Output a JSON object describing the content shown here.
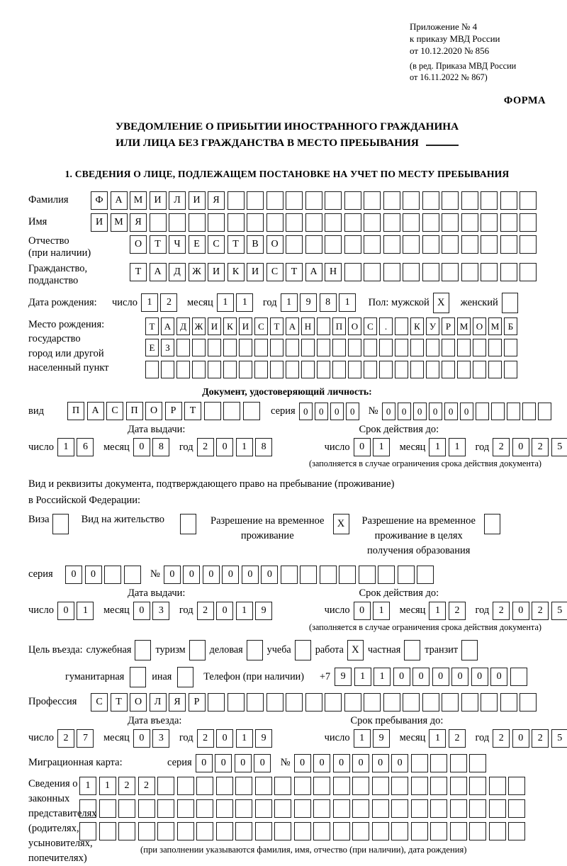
{
  "meta": {
    "appendix_line1": "Приложение № 4",
    "appendix_line2": "к приказу МВД России",
    "appendix_line3": "от 10.12.2020 № 856",
    "edition_line1": "(в ред. Приказа МВД России",
    "edition_line2": "от 16.11.2022 № 867)",
    "forma": "ФОРМА"
  },
  "title": {
    "line1": "УВЕДОМЛЕНИЕ О ПРИБЫТИИ ИНОСТРАННОГО ГРАЖДАНИНА",
    "line2": "ИЛИ ЛИЦА БЕЗ ГРАЖДАНСТВА В МЕСТО ПРЕБЫВАНИЯ"
  },
  "section1_heading": "1. СВЕДЕНИЯ О ЛИЦЕ, ПОДЛЕЖАЩЕМ ПОСТАНОВКЕ НА УЧЕТ ПО МЕСТУ ПРЕБЫВАНИЯ",
  "fields": {
    "surname": {
      "label": "Фамилия",
      "cells": {
        "text": "ФАМИЛИЯ",
        "len": 23
      }
    },
    "firstname": {
      "label": "Имя",
      "cells": {
        "text": "ИМЯ",
        "len": 23
      }
    },
    "patronymic": {
      "label_line1": "Отчество",
      "label_line2": "(при наличии)",
      "cells": {
        "text": "ОТЧЕСТВО",
        "len": 21
      }
    },
    "citizenship": {
      "label_line1": "Гражданство,",
      "label_line2": "подданство",
      "cells": {
        "text": "ТАДЖИКИСТАН",
        "len": 21
      }
    },
    "birth_date": {
      "label": "Дата рождения:",
      "day_label": "число",
      "day": {
        "text": "12",
        "len": 2
      },
      "month_label": "месяц",
      "month": {
        "text": "11",
        "len": 2
      },
      "year_label": "год",
      "year": {
        "text": "1981",
        "len": 4
      },
      "gender_label": "Пол: мужской",
      "male_mark": "X",
      "female_label": "женский",
      "female_mark": ""
    },
    "birth_place": {
      "label_line1": "Место рождения:",
      "label_line2": "государство",
      "label_line3": "город или другой",
      "label_line4": "населенный пункт",
      "row1": {
        "text": "ТАДЖИКИСТАН ПОС. КУРМОМБ",
        "len": 24
      },
      "row2": {
        "text": "ЕЗ",
        "len": 24
      },
      "row3": {
        "text": "",
        "len": 24
      }
    },
    "identity_doc": {
      "heading": "Документ, удостоверяющий личность:",
      "type_label": "вид",
      "type_cells": {
        "text": "ПАСПОРТ",
        "len": 10
      },
      "series_label": "серия",
      "series_cells": {
        "text": "0000",
        "len": 4
      },
      "number_label": "№",
      "number_cells": {
        "text": "000000",
        "len": 11
      }
    },
    "identity_doc_dates": {
      "issue_heading": "Дата выдачи:",
      "validity_heading": "Срок действия до:",
      "day_label": "число",
      "month_label": "месяц",
      "year_label": "год",
      "issue_day": {
        "text": "16",
        "len": 2
      },
      "issue_month": {
        "text": "08",
        "len": 2
      },
      "issue_year": {
        "text": "2018",
        "len": 4
      },
      "valid_day": {
        "text": "01",
        "len": 2
      },
      "valid_month": {
        "text": "11",
        "len": 2
      },
      "valid_year": {
        "text": "2025",
        "len": 4
      },
      "note": "(заполняется в случае ограничения срока действия документа)"
    },
    "residence_doc": {
      "intro_line1": "Вид и реквизиты документа, подтверждающего право на пребывание (проживание)",
      "intro_line2": "в Российской Федерации:",
      "visa_label": "Виза",
      "visa_mark": "",
      "vnz_label": "Вид на жительство",
      "vnz_mark": "",
      "rvp_label_line1": "Разрешение на временное",
      "rvp_label_line2": "проживание",
      "rvp_mark": "X",
      "rvp_edu_label_line1": "Разрешение на временное",
      "rvp_edu_label_line2": "проживание в целях",
      "rvp_edu_label_line3": "получения образования",
      "rvp_edu_mark": "",
      "series_label": "серия",
      "series_cells": {
        "text": "00",
        "len": 4
      },
      "number_label": "№",
      "number_cells": {
        "text": "000000",
        "len": 14
      }
    },
    "residence_doc_dates": {
      "issue_heading": "Дата выдачи:",
      "validity_heading": "Срок действия до:",
      "day_label": "число",
      "month_label": "месяц",
      "year_label": "год",
      "issue_day": {
        "text": "01",
        "len": 2
      },
      "issue_month": {
        "text": "03",
        "len": 2
      },
      "issue_year": {
        "text": "2019",
        "len": 4
      },
      "valid_day": {
        "text": "01",
        "len": 2
      },
      "valid_month": {
        "text": "12",
        "len": 2
      },
      "valid_year": {
        "text": "2025",
        "len": 4
      },
      "note": "(заполняется в случае ограничения срока действия документа)"
    },
    "visit_purpose": {
      "prefix": "Цель въезда:",
      "options": [
        {
          "label": "служебная",
          "mark": ""
        },
        {
          "label": "туризм",
          "mark": ""
        },
        {
          "label": "деловая",
          "mark": ""
        },
        {
          "label": "учеба",
          "mark": ""
        },
        {
          "label": "работа",
          "mark": "X"
        },
        {
          "label": "частная",
          "mark": ""
        },
        {
          "label": "транзит",
          "mark": ""
        }
      ],
      "humanitarian_label": "гуманитарная",
      "humanitarian_mark": "",
      "other_label": "иная",
      "other_mark": "",
      "phone_label": "Телефон (при наличии)",
      "phone_prefix": "+7",
      "phone_cells": {
        "text": "911000000",
        "len": 10
      }
    },
    "profession": {
      "label": "Профессия",
      "cells": {
        "text": "СТОЛЯР",
        "len": 23
      }
    },
    "entry_dates": {
      "entry_heading": "Дата въезда:",
      "stay_heading": "Срок пребывания до:",
      "day_label": "число",
      "month_label": "месяц",
      "year_label": "год",
      "entry_day": {
        "text": "27",
        "len": 2
      },
      "entry_month": {
        "text": "03",
        "len": 2
      },
      "entry_year": {
        "text": "2019",
        "len": 4
      },
      "stay_day": {
        "text": "19",
        "len": 2
      },
      "stay_month": {
        "text": "12",
        "len": 2
      },
      "stay_year": {
        "text": "2025",
        "len": 4
      }
    },
    "migration_card": {
      "label": "Миграционная карта:",
      "series_label": "серия",
      "series_cells": {
        "text": "0000",
        "len": 4
      },
      "number_label": "№",
      "number_cells": {
        "text": "000000",
        "len": 10
      }
    },
    "legal_reps": {
      "label_line1": "Сведения о",
      "label_line2": "законных",
      "label_line3": "представителях",
      "label_line4": "(родителях,",
      "label_line5": "усыновителях,",
      "label_line6": "попечителях)",
      "row1": {
        "text": "1122",
        "len": 23
      },
      "row2": {
        "text": "",
        "len": 23
      },
      "row3": {
        "text": "",
        "len": 23
      },
      "note": "(при заполнении указываются фамилия, имя, отчество (при наличии), дата рождения)"
    }
  }
}
